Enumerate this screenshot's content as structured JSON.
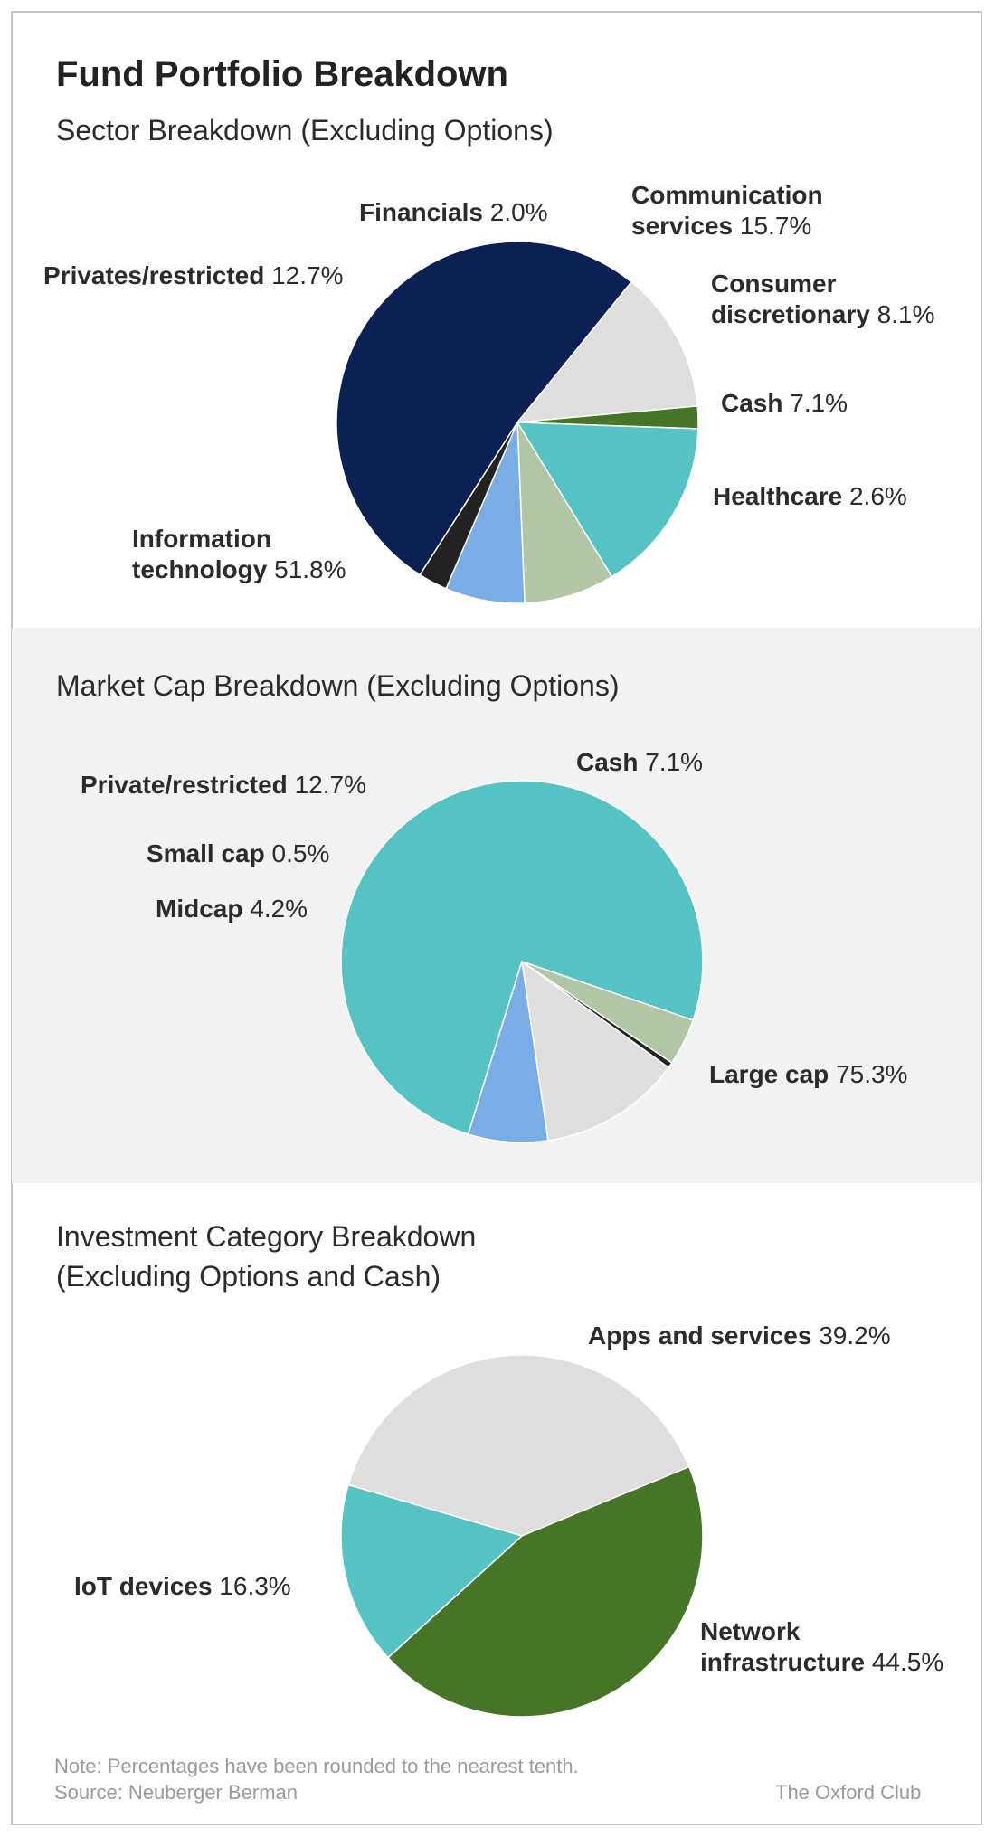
{
  "title": "Fund Portfolio Breakdown",
  "chart_data": [
    {
      "type": "pie",
      "title": "Sector Breakdown (Excluding Options)",
      "categories": [
        "Information technology",
        "Privates/restricted",
        "Financials",
        "Communication services",
        "Consumer discretionary",
        "Cash",
        "Healthcare"
      ],
      "values": [
        51.8,
        12.7,
        2.0,
        15.7,
        8.1,
        7.1,
        2.6
      ],
      "colors": [
        "#0b2154",
        "#dedede",
        "#467528",
        "#55c3c4",
        "#b2c6a5",
        "#7aade6",
        "#222222"
      ]
    },
    {
      "type": "pie",
      "title": "Market Cap Breakdown (Excluding Options)",
      "categories": [
        "Large cap",
        "Midcap",
        "Small cap",
        "Private/restricted",
        "Cash"
      ],
      "values": [
        75.3,
        4.2,
        0.5,
        12.7,
        7.1
      ],
      "colors": [
        "#55c3c4",
        "#b2c6a5",
        "#222222",
        "#dedede",
        "#7aade6"
      ]
    },
    {
      "type": "pie",
      "title": "Investment Category Breakdown (Excluding Options and Cash)",
      "categories": [
        "Apps and services",
        "Network infrastructure",
        "IoT devices"
      ],
      "values": [
        39.2,
        44.5,
        16.3
      ],
      "colors": [
        "#dedede",
        "#467528",
        "#55c3c4"
      ]
    }
  ],
  "labels": {
    "sector": {
      "financials": {
        "name": "Financials",
        "pct": "2.0%"
      },
      "communication": {
        "name1": "Communication",
        "name2": "services",
        "pct": "15.7%"
      },
      "privates": {
        "name": "Privates/restricted",
        "pct": "12.7%"
      },
      "consumer": {
        "name1": "Consumer",
        "name2": "discretionary",
        "pct": "8.1%"
      },
      "cash": {
        "name": "Cash",
        "pct": "7.1%"
      },
      "healthcare": {
        "name": "Healthcare",
        "pct": "2.6%"
      },
      "it": {
        "name1": "Information",
        "name2": "technology",
        "pct": "51.8%"
      }
    },
    "market": {
      "cash": {
        "name": "Cash",
        "pct": "7.1%"
      },
      "private": {
        "name": "Private/restricted",
        "pct": "12.7%"
      },
      "small": {
        "name": "Small cap",
        "pct": "0.5%"
      },
      "mid": {
        "name": "Midcap",
        "pct": "4.2%"
      },
      "large": {
        "name": "Large cap",
        "pct": "75.3%"
      }
    },
    "investment": {
      "title1": "Investment Category Breakdown",
      "title2": "(Excluding Options and Cash)",
      "apps": {
        "name": "Apps and services",
        "pct": "39.2%"
      },
      "iot": {
        "name": "IoT devices",
        "pct": "16.3%"
      },
      "network": {
        "name1": "Network",
        "name2": "infrastructure",
        "pct": "44.5%"
      }
    }
  },
  "footer": {
    "note": "Note: Percentages have been rounded to the nearest tenth.",
    "source": "Source: Neuberger Berman",
    "brand": "The Oxford Club"
  }
}
